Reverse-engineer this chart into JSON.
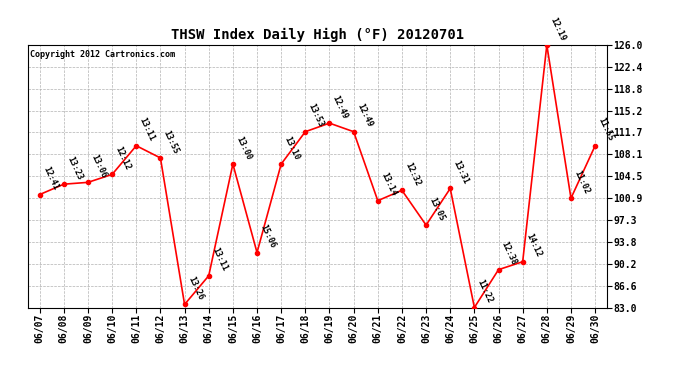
{
  "title": "THSW Index Daily High (°F) 20120701",
  "copyright": "Copyright 2012 Cartronics.com",
  "dates": [
    "06/07",
    "06/08",
    "06/09",
    "06/10",
    "06/11",
    "06/12",
    "06/13",
    "06/14",
    "06/15",
    "06/16",
    "06/17",
    "06/18",
    "06/19",
    "06/20",
    "06/21",
    "06/22",
    "06/23",
    "06/24",
    "06/25",
    "06/26",
    "06/27",
    "06/28",
    "06/29",
    "06/30"
  ],
  "values": [
    101.5,
    103.2,
    103.5,
    104.8,
    109.5,
    107.5,
    83.5,
    88.2,
    106.5,
    92.0,
    106.5,
    111.8,
    113.2,
    111.8,
    100.5,
    102.2,
    96.5,
    102.5,
    83.0,
    89.2,
    90.5,
    126.0,
    100.9,
    109.5
  ],
  "labels": [
    "12:41",
    "13:23",
    "13:06",
    "12:12",
    "13:11",
    "13:55",
    "13:26",
    "13:11",
    "13:00",
    "15:06",
    "13:10",
    "13:53",
    "12:49",
    "12:49",
    "13:14",
    "12:32",
    "13:05",
    "13:31",
    "11:22",
    "12:38",
    "14:12",
    "12:19",
    "11:02",
    "11:55"
  ],
  "ylim": [
    83.0,
    126.0
  ],
  "yticks": [
    83.0,
    86.6,
    90.2,
    93.8,
    97.3,
    100.9,
    104.5,
    108.1,
    111.7,
    115.2,
    118.8,
    122.4,
    126.0
  ],
  "line_color": "#FF0000",
  "marker_color": "#FF0000",
  "bg_color": "#FFFFFF",
  "grid_color": "#AAAAAA",
  "title_fontsize": 10,
  "label_fontsize": 6,
  "tick_fontsize": 7,
  "copyright_fontsize": 6
}
